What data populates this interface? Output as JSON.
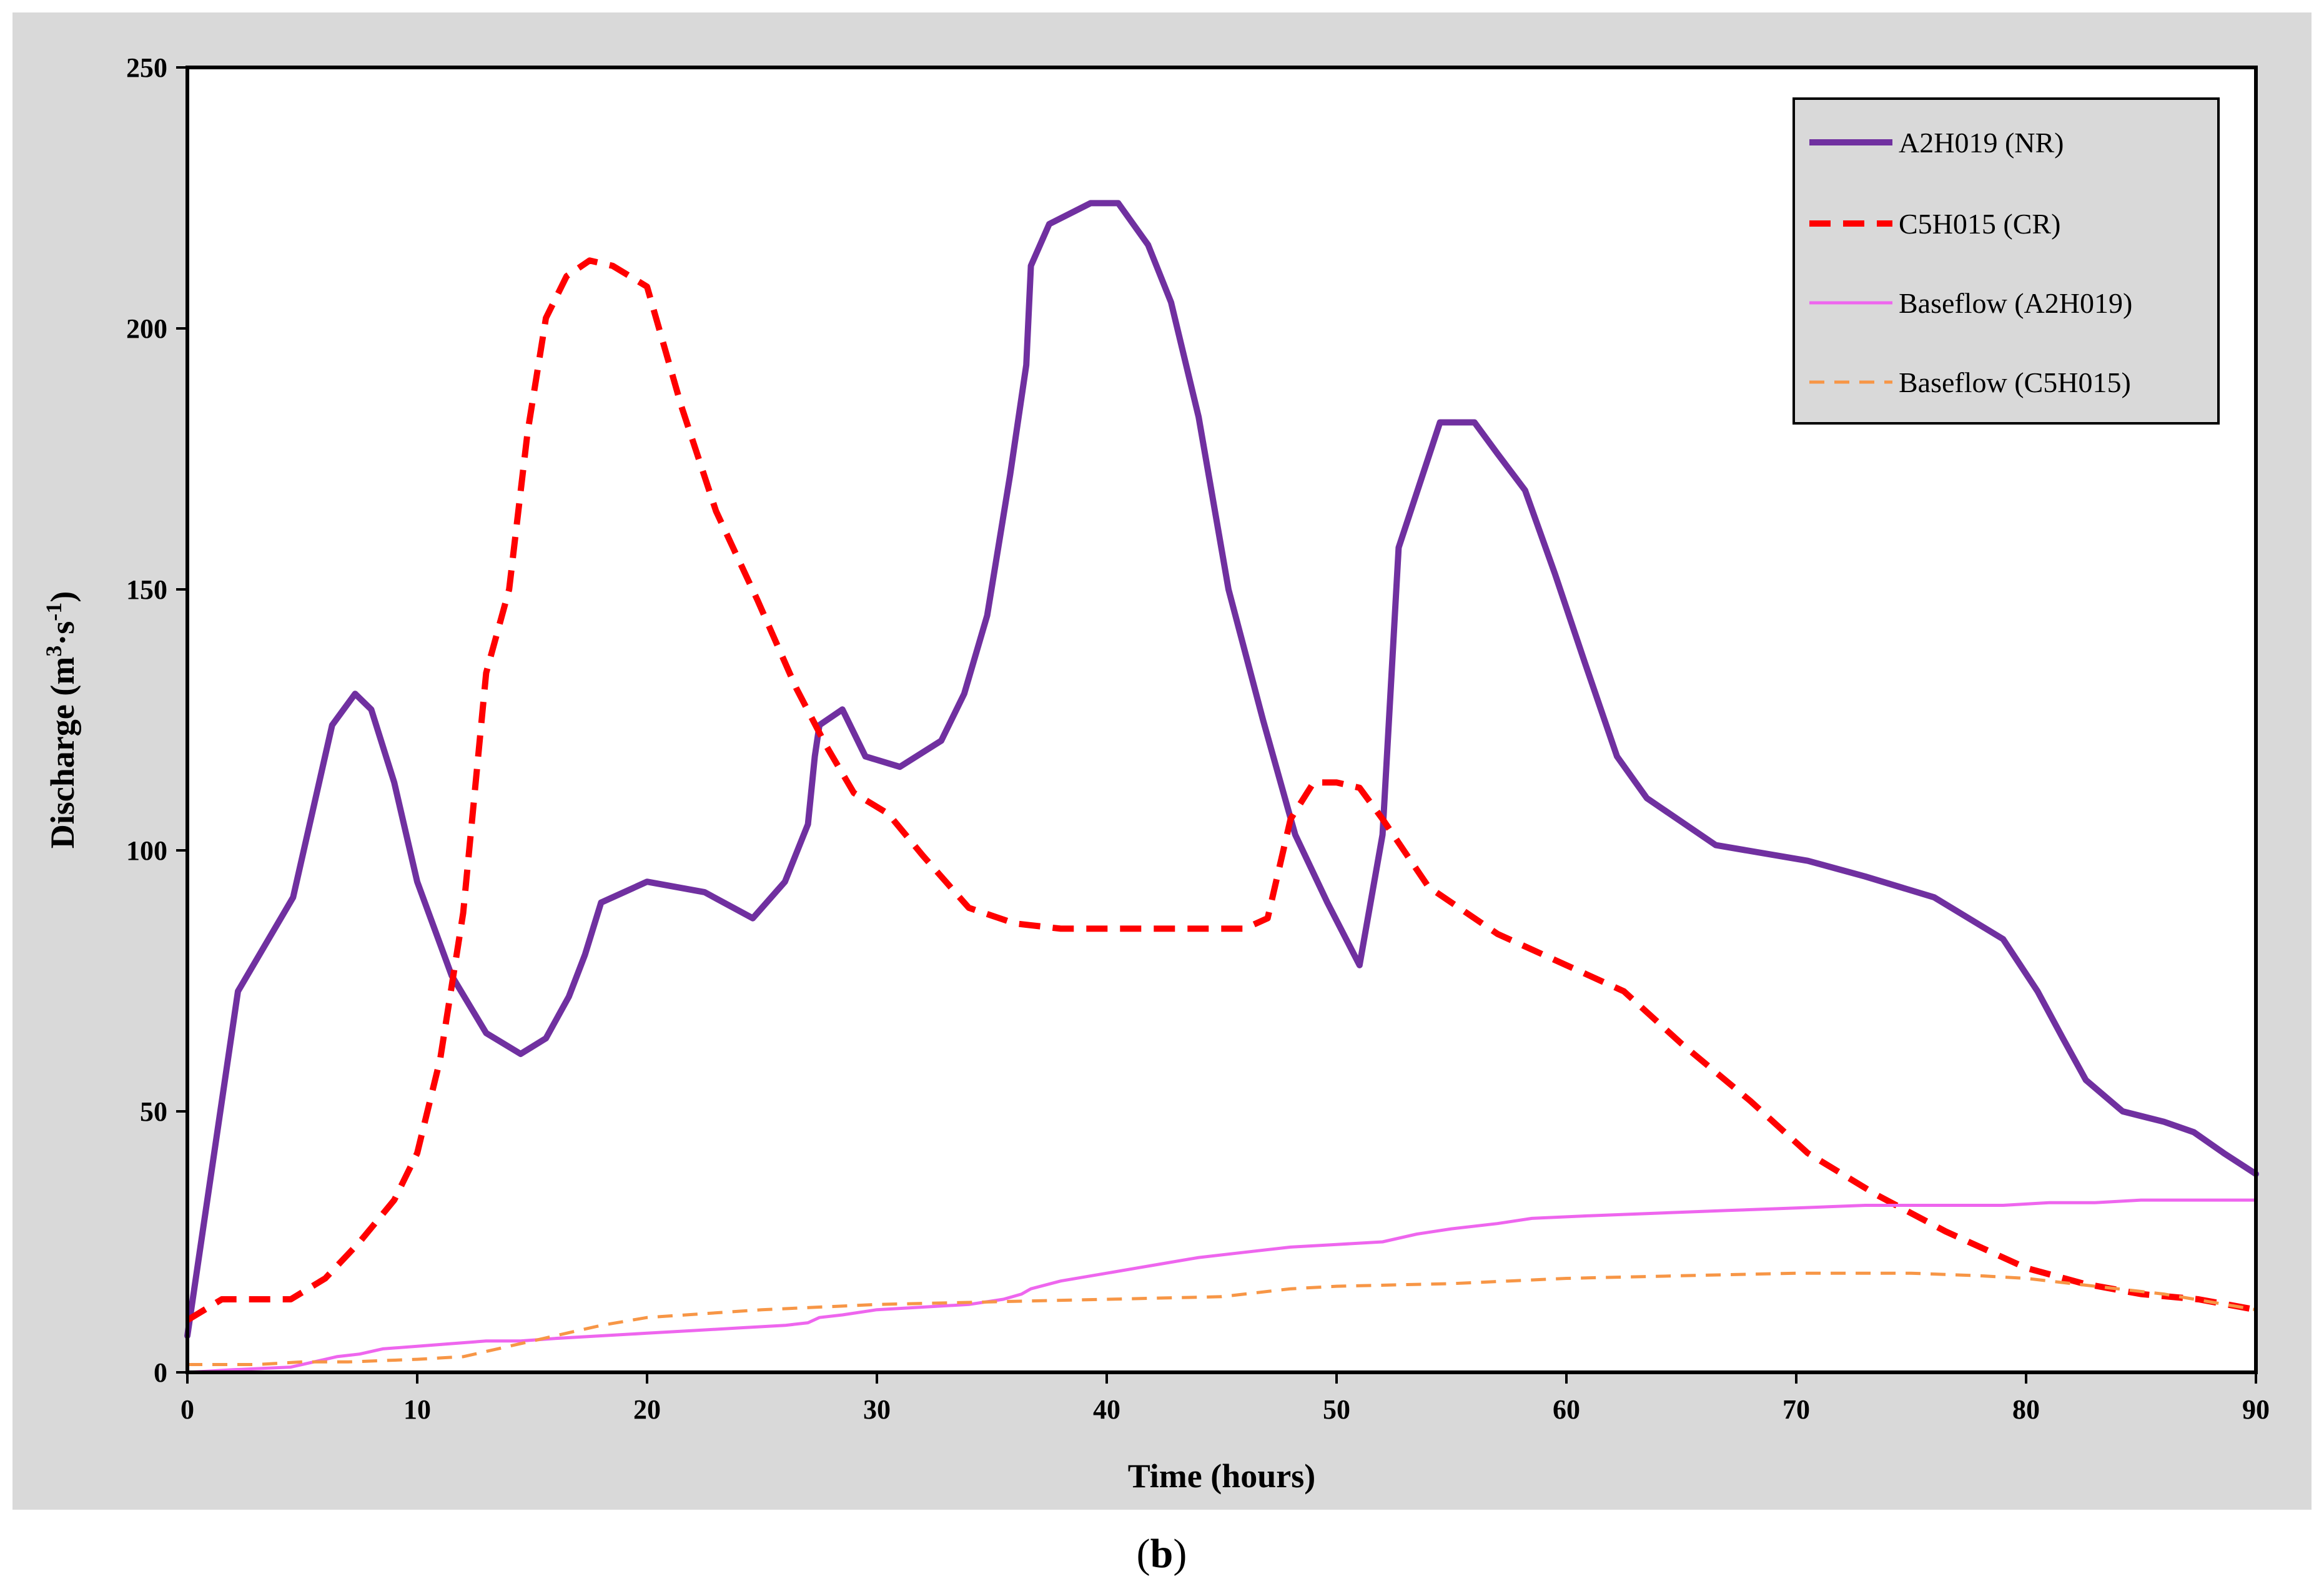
{
  "panel_label": {
    "open": "(",
    "letter": "b",
    "close": ")"
  },
  "chart_data": {
    "type": "line",
    "title": "",
    "xlabel": "Time (hours)",
    "ylabel": {
      "main": "Discharge (m",
      "sup1": "3",
      "mid": "·s",
      "sup2": "-1",
      "end": ")"
    },
    "xlim": [
      0,
      90
    ],
    "ylim": [
      0,
      250
    ],
    "xticks": [
      0,
      10,
      20,
      30,
      40,
      50,
      60,
      70,
      80,
      90
    ],
    "yticks": [
      0,
      50,
      100,
      150,
      200,
      250
    ],
    "grid": false,
    "legend_position": "top-right",
    "series": [
      {
        "name": "A2H019 (NR)",
        "color": "#7030a0",
        "dash": "solid",
        "weight": "thick",
        "x": [
          0,
          2.2,
          4.6,
          6.3,
          7.3,
          8,
          9,
          10,
          11.5,
          13,
          14.5,
          15.6,
          16.6,
          17.3,
          18,
          20,
          22.5,
          24.6,
          26,
          27,
          27.3,
          27.5,
          28.5,
          29.5,
          31,
          32.8,
          33.8,
          34.8,
          35.8,
          36.5,
          36.7,
          37.5,
          39.3,
          40.5,
          41.8,
          42.8,
          44,
          45.3,
          46.8,
          48.2,
          49.6,
          51,
          52,
          52.7,
          54.5,
          56,
          57,
          58.2,
          59.5,
          60.8,
          62.2,
          63.5,
          66.5,
          70.5,
          73,
          76,
          79,
          80.5,
          81.6,
          82.6,
          84.2,
          86,
          87.3,
          88.6,
          90
        ],
        "values": [
          7,
          73,
          91,
          124,
          130,
          127,
          113,
          94,
          76,
          65,
          61,
          64,
          72,
          80,
          90,
          94,
          92,
          87,
          94,
          105,
          118,
          124,
          127,
          118,
          116,
          121,
          130,
          145,
          172,
          193,
          212,
          220,
          224,
          224,
          216,
          205,
          183,
          150,
          125,
          103,
          90,
          78,
          103,
          158,
          182,
          182,
          176,
          169,
          153,
          136,
          118,
          110,
          101,
          98,
          95,
          91,
          83,
          73,
          64,
          56,
          50,
          48,
          46,
          42,
          38
        ]
      },
      {
        "name": "C5H015 (CR)",
        "color": "#ff0000",
        "dash": "dashed",
        "weight": "thick",
        "x": [
          0,
          1.5,
          3,
          4.5,
          6,
          7.5,
          9,
          10,
          11,
          12,
          13,
          14,
          14.8,
          15.6,
          16.5,
          17.5,
          18.5,
          20,
          21.5,
          23,
          24.8,
          26.5,
          27.8,
          29,
          30.5,
          32,
          34,
          36,
          38,
          40,
          42,
          44,
          46,
          47,
          48,
          49,
          50,
          51,
          52,
          54,
          57,
          60,
          62.5,
          65,
          68,
          70.5,
          73.5,
          76.5,
          80,
          82.5,
          85,
          87.5,
          90
        ],
        "values": [
          10,
          14,
          14,
          14,
          18,
          25,
          33,
          42,
          60,
          88,
          134,
          150,
          180,
          202,
          210,
          213,
          212,
          208,
          185,
          165,
          148,
          131,
          120,
          111,
          107,
          99,
          89,
          86,
          85,
          85,
          85,
          85,
          85,
          87,
          106,
          113,
          113,
          112,
          106,
          93,
          84,
          78,
          73,
          63,
          52,
          42,
          34,
          27,
          20,
          17,
          15,
          14,
          12
        ]
      },
      {
        "name": "Baseflow (A2H019)",
        "color": "#ee66ee",
        "dash": "solid",
        "weight": "thin",
        "x": [
          0,
          2,
          4.5,
          5.5,
          6.5,
          7.5,
          8.5,
          10,
          11.5,
          13,
          14.5,
          16,
          18,
          20,
          22,
          24,
          26,
          27,
          27.5,
          28.5,
          30,
          32,
          34,
          35.5,
          36.3,
          36.7,
          38,
          40,
          42,
          44,
          46,
          48,
          50,
          52,
          53.5,
          55,
          57,
          58.5,
          61,
          64,
          67,
          70,
          73,
          76,
          79,
          81,
          83,
          85,
          88,
          90
        ],
        "values": [
          0,
          0.5,
          1,
          2,
          3,
          3.5,
          4.5,
          5,
          5.5,
          6,
          6,
          6.5,
          7,
          7.5,
          8,
          8.5,
          9,
          9.5,
          10.5,
          11,
          12,
          12.5,
          13,
          14,
          15,
          16,
          17.5,
          19,
          20.5,
          22,
          23,
          24,
          24.5,
          25,
          26.5,
          27.5,
          28.5,
          29.5,
          30,
          30.5,
          31,
          31.5,
          32,
          32,
          32,
          32.5,
          32.5,
          33,
          33,
          33
        ]
      },
      {
        "name": "Baseflow (C5H015)",
        "color": "#f79646",
        "dash": "dashed",
        "weight": "thin",
        "x": [
          0,
          3,
          5,
          7,
          10,
          12,
          14,
          16,
          18,
          20,
          25,
          30,
          35,
          40,
          45,
          48,
          50,
          55,
          60,
          65,
          70,
          75,
          78,
          80,
          83,
          86,
          88,
          90
        ],
        "values": [
          1.5,
          1.5,
          2,
          2,
          2.5,
          3,
          5,
          7,
          9,
          10.5,
          12,
          13,
          13.5,
          14,
          14.5,
          16,
          16.5,
          17,
          18,
          18.5,
          19,
          19,
          18.5,
          18,
          16.5,
          15,
          13.5,
          12
        ]
      }
    ]
  }
}
